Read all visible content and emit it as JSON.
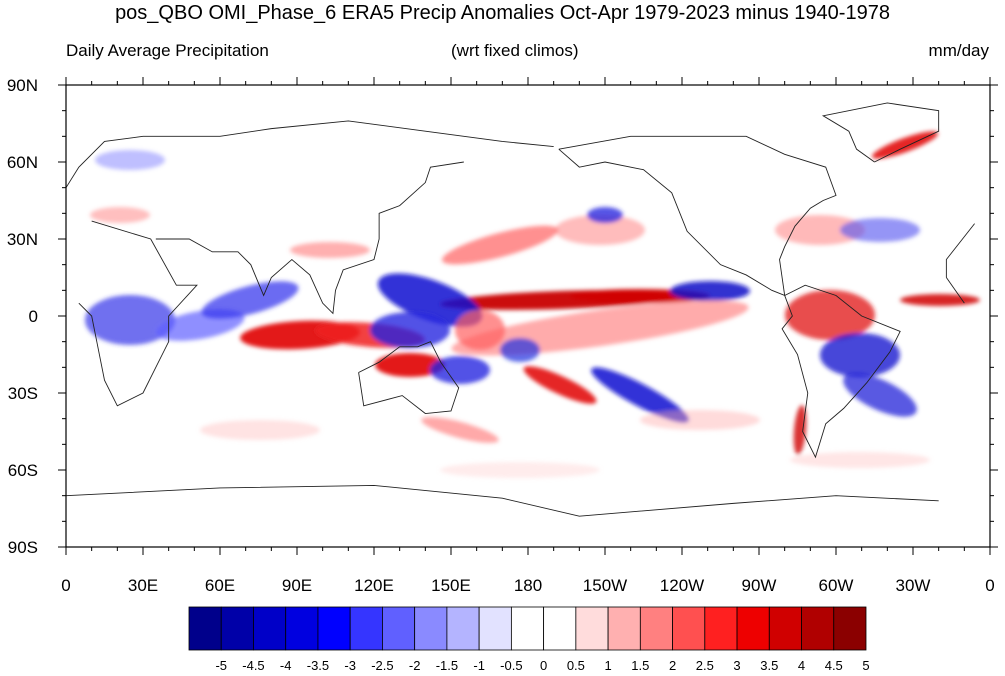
{
  "title": "pos_QBO OMI_Phase_6 ERA5 Precip Anomalies Oct-Apr 1979-2023 minus 1940-1978",
  "left_label": "Daily Average Precipitation",
  "center_label": "(wrt fixed climos)",
  "right_label": "mm/day",
  "lat_labels": [
    "90N",
    "60N",
    "30N",
    "0",
    "30S",
    "60S",
    "90S"
  ],
  "lon_labels": [
    "0",
    "30E",
    "60E",
    "90E",
    "120E",
    "150E",
    "180",
    "150W",
    "120W",
    "90W",
    "60W",
    "30W",
    "0"
  ],
  "colorbar": {
    "labels": [
      "-5",
      "-4.5",
      "-4",
      "-3.5",
      "-3",
      "-2.5",
      "-2",
      "-1.5",
      "-1",
      "-0.5",
      "0",
      "0.5",
      "1",
      "1.5",
      "2",
      "2.5",
      "3",
      "3.5",
      "4",
      "4.5",
      "5"
    ],
    "colors": [
      "#00008b",
      "#0000a8",
      "#0000c8",
      "#0000e0",
      "#0000ff",
      "#3535ff",
      "#6060ff",
      "#8a8aff",
      "#b4b4ff",
      "#e2e2ff",
      "#ffffff",
      "#ffffff",
      "#ffdcdc",
      "#ffb0b0",
      "#ff8080",
      "#ff5050",
      "#ff2020",
      "#ee0000",
      "#d00000",
      "#b00000",
      "#8b0000"
    ]
  },
  "colors": {
    "positive": "#e00000",
    "negative": "#1020e0"
  }
}
